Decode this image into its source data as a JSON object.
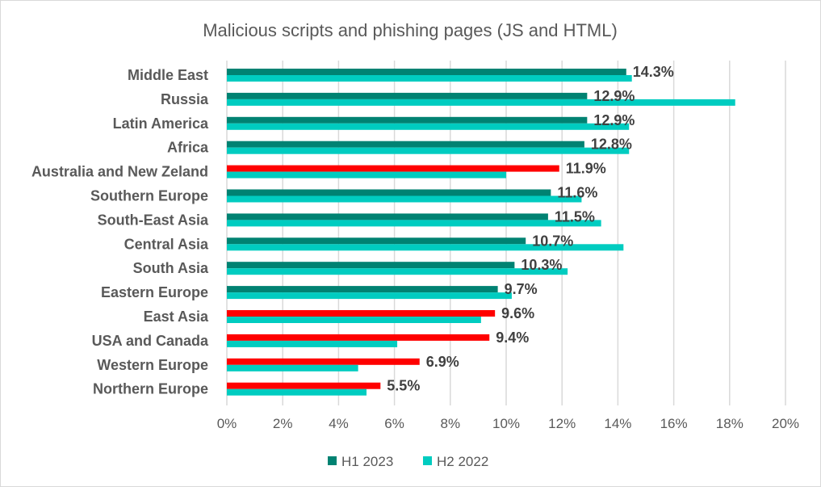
{
  "chart_data": {
    "type": "bar",
    "orientation": "horizontal",
    "title": "Malicious scripts and phishing pages (JS and HTML)",
    "categories": [
      "Middle East",
      "Russia",
      "Latin America",
      "Africa",
      "Australia and New Zeland",
      "Southern Europe",
      "South-East Asia",
      "Central Asia",
      "South Asia",
      "Eastern Europe",
      "East Asia",
      "USA and Canada",
      "Western Europe",
      "Northern Europe"
    ],
    "series": [
      {
        "name": "H1 2023",
        "color": "#008272",
        "values": [
          14.3,
          12.9,
          12.9,
          12.8,
          11.9,
          11.6,
          11.5,
          10.7,
          10.3,
          9.7,
          9.6,
          9.4,
          6.9,
          5.5
        ]
      },
      {
        "name": "H2 2022",
        "color": "#00CCC0",
        "values": [
          14.5,
          18.2,
          14.4,
          14.4,
          10.0,
          12.7,
          13.4,
          14.2,
          12.2,
          10.2,
          9.1,
          6.1,
          4.7,
          5.0
        ]
      }
    ],
    "highlight_color": "#FF0000",
    "highlighted": [
      false,
      false,
      false,
      false,
      true,
      false,
      false,
      false,
      false,
      false,
      true,
      true,
      true,
      true
    ],
    "data_labels": [
      "14.3%",
      "12.9%",
      "12.9%",
      "12.8%",
      "11.9%",
      "11.6%",
      "11.5%",
      "10.7%",
      "10.3%",
      "9.7%",
      "9.6%",
      "9.4%",
      "6.9%",
      "5.5%"
    ],
    "xlim": [
      0,
      20
    ],
    "xticks": [
      "0%",
      "2%",
      "4%",
      "6%",
      "8%",
      "10%",
      "12%",
      "14%",
      "16%",
      "18%",
      "20%"
    ],
    "grid": true,
    "legend_position": "bottom"
  }
}
